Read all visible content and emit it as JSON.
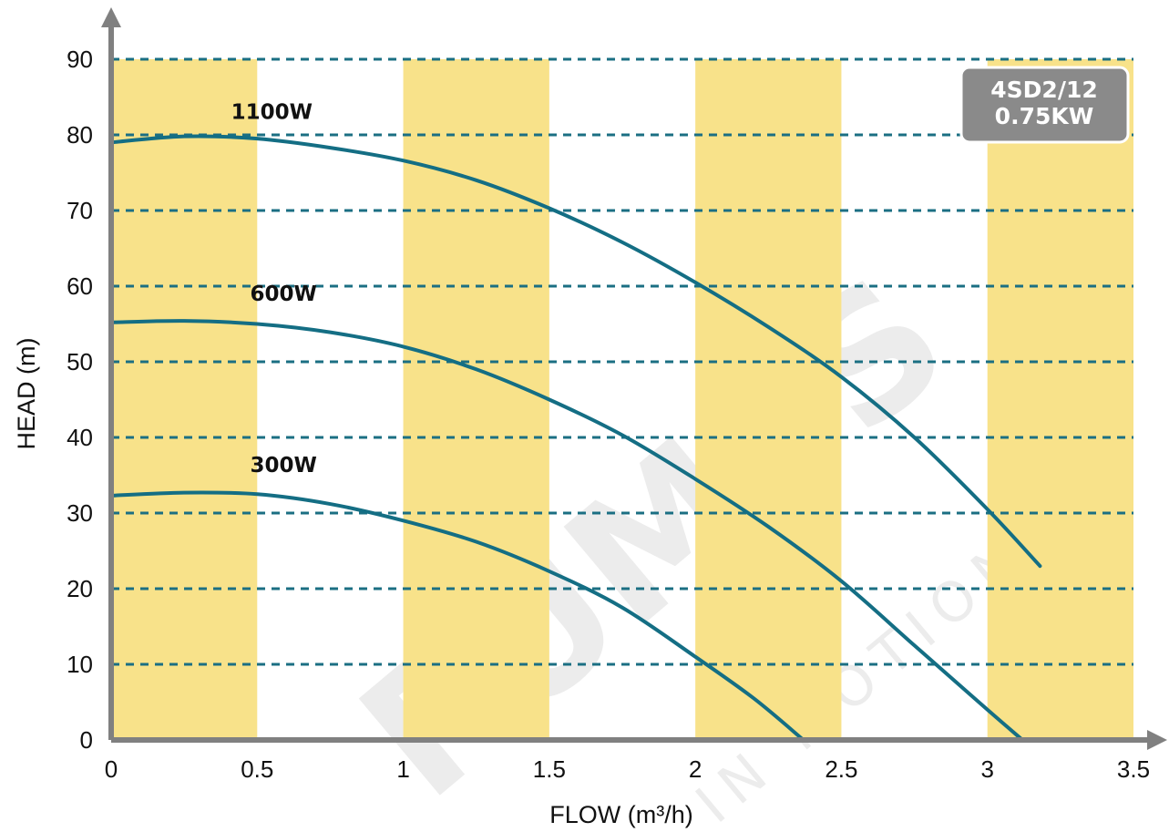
{
  "colors": {
    "band": "#f8e28a",
    "grid": "#1b6f83",
    "curve": "#146e84",
    "axis": "#808080",
    "badge_bg": "#8a8a8a",
    "badge_border": "#ffffff",
    "watermark": "#ececec"
  },
  "watermark": {
    "brand": "PUMPS",
    "tagline": "IN MOTION"
  },
  "chart_data": {
    "type": "line",
    "xlabel": "FLOW (m³/h)",
    "ylabel": "HEAD (m)",
    "xlim": [
      0,
      3.5
    ],
    "ylim": [
      0,
      90
    ],
    "x_ticks": [
      "0",
      "0.5",
      "1",
      "1.5",
      "2",
      "2.5",
      "3",
      "3.5"
    ],
    "y_ticks": [
      "0",
      "10",
      "20",
      "30",
      "40",
      "50",
      "60",
      "70",
      "80",
      "90"
    ],
    "grid": "horizontal dashed",
    "shaded_bands": [
      [
        0,
        0.5
      ],
      [
        1,
        1.5
      ],
      [
        2,
        2.5
      ],
      [
        3,
        3.5
      ]
    ],
    "badge": [
      "4SD2/12",
      "0.75KW"
    ],
    "series": [
      {
        "name": "1100W",
        "x": [
          0,
          0.25,
          0.5,
          0.75,
          1.0,
          1.25,
          1.5,
          1.75,
          2.0,
          2.25,
          2.5,
          2.75,
          3.0,
          3.18
        ],
        "y": [
          79,
          79.8,
          79.5,
          78.3,
          76.6,
          74.0,
          70.3,
          65.8,
          60.5,
          54.6,
          48.0,
          40.0,
          30.5,
          23.0
        ]
      },
      {
        "name": "600W",
        "x": [
          0,
          0.25,
          0.5,
          0.75,
          1.0,
          1.25,
          1.5,
          1.75,
          2.0,
          2.25,
          2.5,
          2.75,
          3.0,
          3.12
        ],
        "y": [
          55.2,
          55.4,
          55.0,
          53.9,
          52.0,
          49.0,
          45.0,
          40.3,
          34.5,
          28.2,
          21.0,
          12.5,
          4.0,
          0
        ]
      },
      {
        "name": "300W",
        "x": [
          0,
          0.25,
          0.5,
          0.75,
          1.0,
          1.25,
          1.5,
          1.75,
          2.0,
          2.2,
          2.37
        ],
        "y": [
          32.3,
          32.7,
          32.5,
          31.2,
          29.0,
          26.2,
          22.3,
          17.5,
          11.0,
          5.5,
          0
        ]
      }
    ]
  }
}
